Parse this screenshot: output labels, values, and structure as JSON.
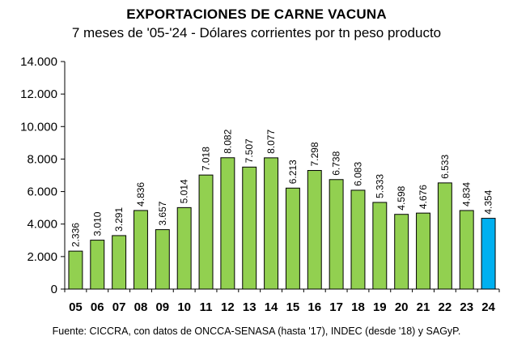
{
  "chart_data": {
    "type": "bar",
    "title": "EXPORTACIONES DE CARNE VACUNA",
    "subtitle": "7 meses de '05-'24 - Dólares corrientes por tn peso producto",
    "source": "Fuente: CICCRA, con datos de ONCCA-SENASA (hasta '17), INDEC (desde '18) y SAGyP.",
    "xlabel": "",
    "ylabel": "",
    "ylim": [
      0,
      14000
    ],
    "yticks": [
      0,
      2000,
      4000,
      6000,
      8000,
      10000,
      12000,
      14000
    ],
    "ytick_labels": [
      "0",
      "2.000",
      "4.000",
      "6.000",
      "8.000",
      "10.000",
      "12.000",
      "14.000"
    ],
    "grid": false,
    "categories": [
      "05",
      "06",
      "07",
      "08",
      "09",
      "10",
      "11",
      "12",
      "13",
      "14",
      "15",
      "16",
      "17",
      "18",
      "19",
      "20",
      "21",
      "22",
      "23",
      "24"
    ],
    "values": [
      2336,
      3010,
      3291,
      4836,
      3657,
      5014,
      7018,
      8082,
      7507,
      8077,
      6213,
      7298,
      6738,
      6083,
      5333,
      4598,
      4676,
      6533,
      4834,
      4354
    ],
    "value_labels": [
      "2.336",
      "3.010",
      "3.291",
      "4.836",
      "3.657",
      "5.014",
      "7.018",
      "8.082",
      "7.507",
      "8.077",
      "6.213",
      "7.298",
      "6.738",
      "6.083",
      "5.333",
      "4.598",
      "4.676",
      "6.533",
      "4.834",
      "4.354"
    ],
    "colors": {
      "bar": "#92d050",
      "highlight": "#00b0f0",
      "outline": "#000000"
    },
    "highlight_category": "24"
  }
}
